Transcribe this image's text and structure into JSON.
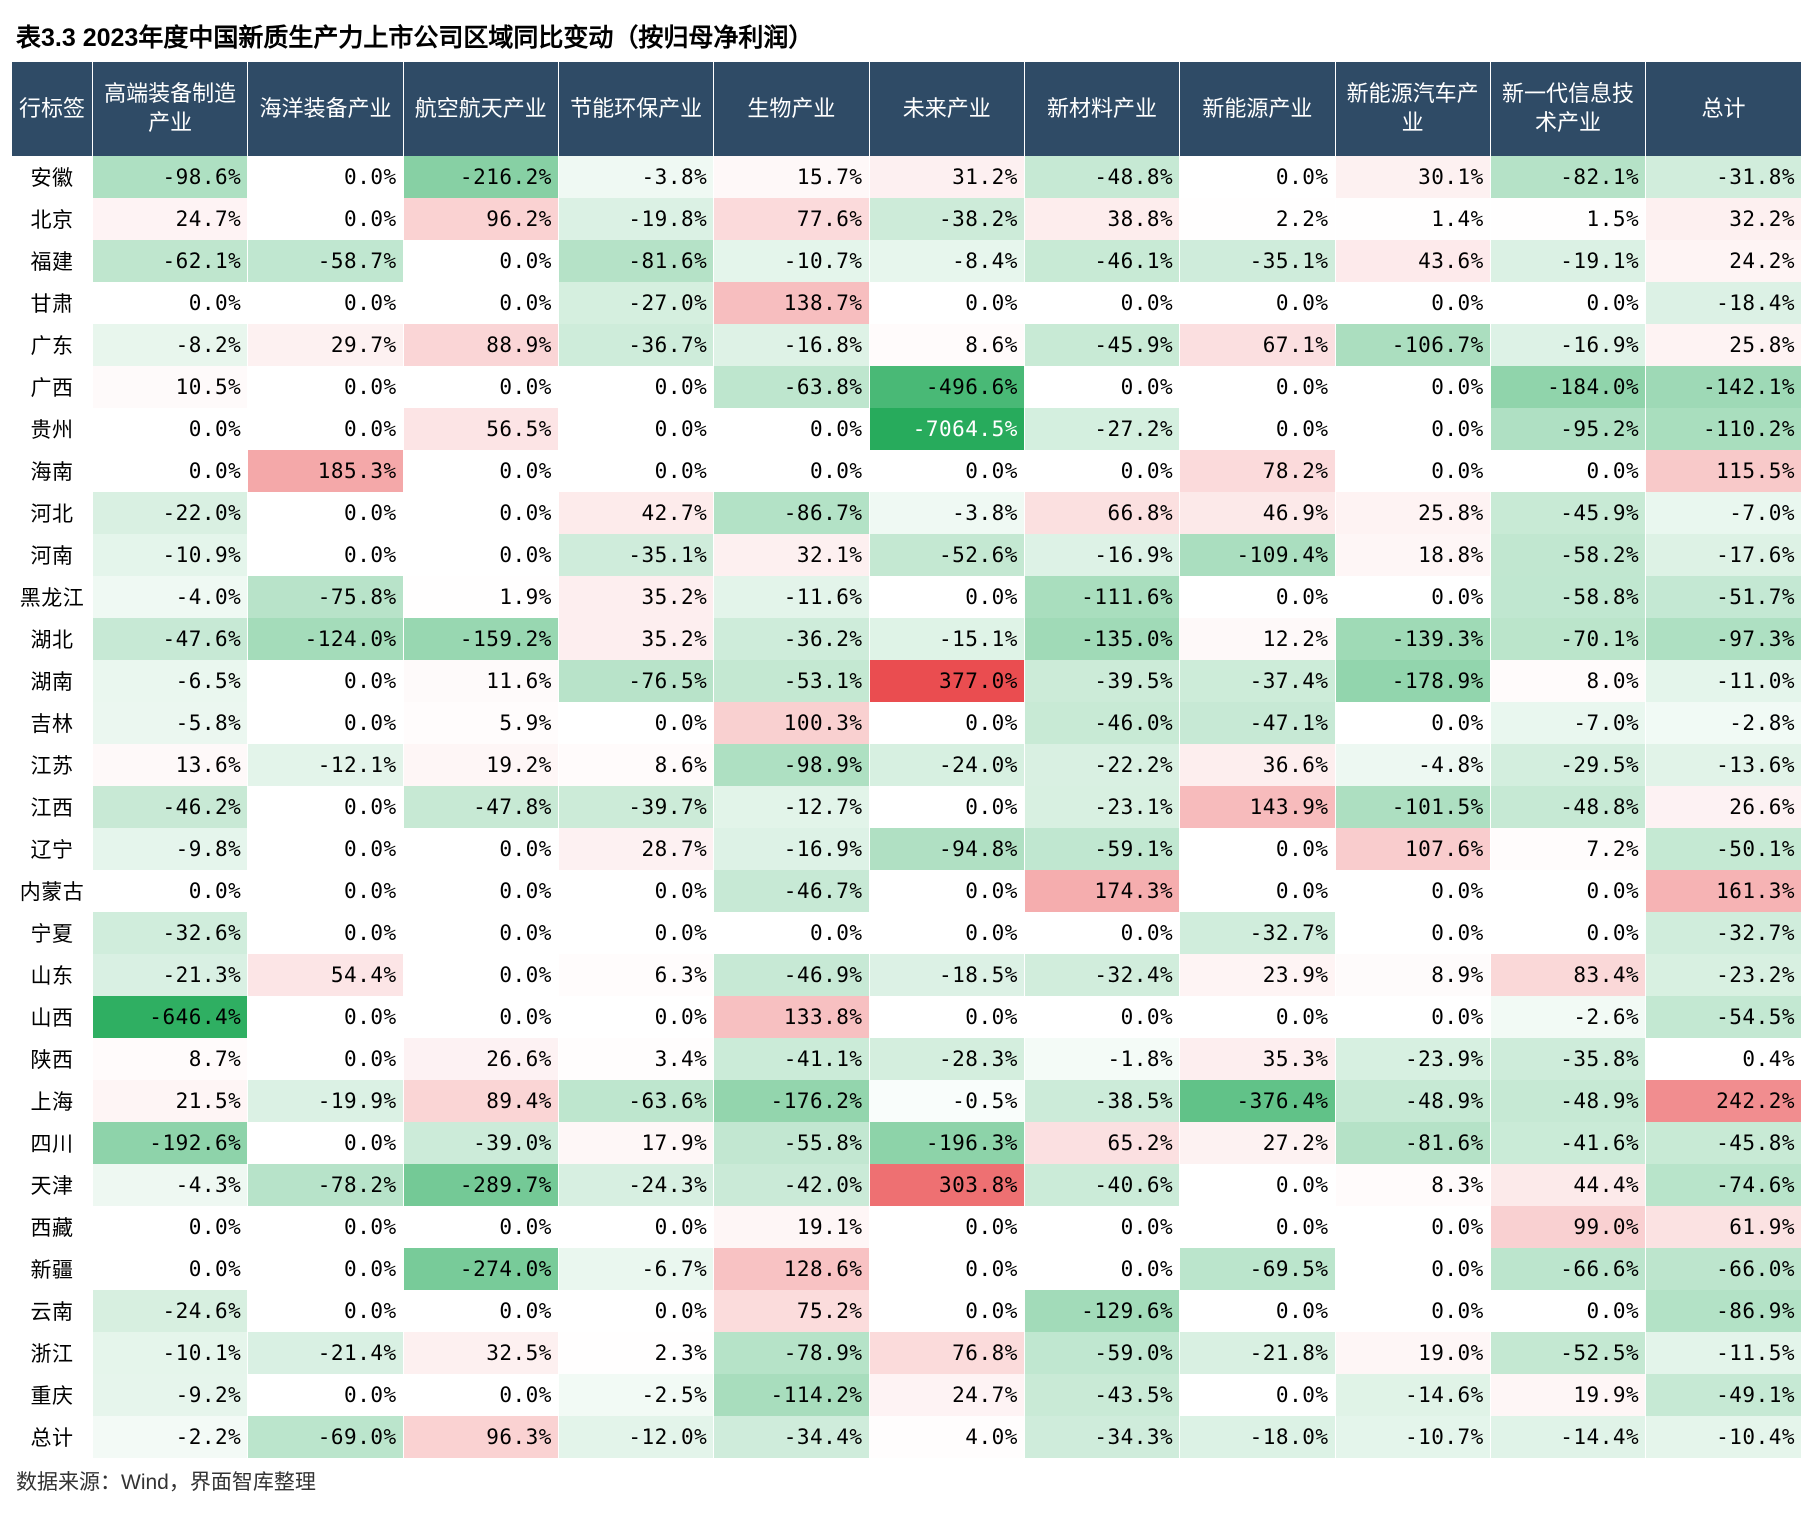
{
  "title": "表3.3 2023年度中国新质生产力上市公司区域同比变动（按归母净利润）",
  "footer": "数据来源：Wind，界面智库整理",
  "header_bg": "#2f4b66",
  "header_fg": "#ffffff",
  "heat_neg_color": "#0fa24a",
  "heat_pos_color": "#e7383b",
  "heat_ranges": {
    "neg_min": -700,
    "neg_max": 0,
    "pos_min": 0,
    "pos_max": 380
  },
  "columns": [
    "行标签",
    "高端装备制造产业",
    "海洋装备产业",
    "航空航天产业",
    "节能环保产业",
    "生物产业",
    "未来产业",
    "新材料产业",
    "新能源产业",
    "新能源汽车产业",
    "新一代信息技术产业",
    "总计"
  ],
  "rows": [
    {
      "label": "安徽",
      "v": [
        -98.6,
        0.0,
        -216.2,
        -3.8,
        15.7,
        31.2,
        -48.8,
        0.0,
        30.1,
        -82.1,
        -31.8
      ]
    },
    {
      "label": "北京",
      "v": [
        24.7,
        0.0,
        96.2,
        -19.8,
        77.6,
        -38.2,
        38.8,
        2.2,
        1.4,
        1.5,
        32.2
      ]
    },
    {
      "label": "福建",
      "v": [
        -62.1,
        -58.7,
        0.0,
        -81.6,
        -10.7,
        -8.4,
        -46.1,
        -35.1,
        43.6,
        -19.1,
        24.2
      ]
    },
    {
      "label": "甘肃",
      "v": [
        0.0,
        0.0,
        0.0,
        -27.0,
        138.7,
        0.0,
        0.0,
        0.0,
        0.0,
        0.0,
        -18.4
      ]
    },
    {
      "label": "广东",
      "v": [
        -8.2,
        29.7,
        88.9,
        -36.7,
        -16.8,
        8.6,
        -45.9,
        67.1,
        -106.7,
        -16.9,
        25.8
      ]
    },
    {
      "label": "广西",
      "v": [
        10.5,
        0.0,
        0.0,
        0.0,
        -63.8,
        -496.6,
        0.0,
        0.0,
        0.0,
        -184.0,
        -142.1
      ]
    },
    {
      "label": "贵州",
      "v": [
        0.0,
        0.0,
        56.5,
        0.0,
        0.0,
        -7064.5,
        -27.2,
        0.0,
        0.0,
        -95.2,
        -110.2
      ]
    },
    {
      "label": "海南",
      "v": [
        0.0,
        185.3,
        0.0,
        0.0,
        0.0,
        0.0,
        0.0,
        78.2,
        0.0,
        0.0,
        115.5
      ]
    },
    {
      "label": "河北",
      "v": [
        -22.0,
        0.0,
        0.0,
        42.7,
        -86.7,
        -3.8,
        66.8,
        46.9,
        25.8,
        -45.9,
        -7.0
      ]
    },
    {
      "label": "河南",
      "v": [
        -10.9,
        0.0,
        0.0,
        -35.1,
        32.1,
        -52.6,
        -16.9,
        -109.4,
        18.8,
        -58.2,
        -17.6
      ]
    },
    {
      "label": "黑龙江",
      "v": [
        -4.0,
        -75.8,
        1.9,
        35.2,
        -11.6,
        0.0,
        -111.6,
        0.0,
        0.0,
        -58.8,
        -51.7
      ]
    },
    {
      "label": "湖北",
      "v": [
        -47.6,
        -124.0,
        -159.2,
        35.2,
        -36.2,
        -15.1,
        -135.0,
        12.2,
        -139.3,
        -70.1,
        -97.3
      ]
    },
    {
      "label": "湖南",
      "v": [
        -6.5,
        0.0,
        11.6,
        -76.5,
        -53.1,
        377.0,
        -39.5,
        -37.4,
        -178.9,
        8.0,
        -11.0
      ]
    },
    {
      "label": "吉林",
      "v": [
        -5.8,
        0.0,
        5.9,
        0.0,
        100.3,
        0.0,
        -46.0,
        -47.1,
        0.0,
        -7.0,
        -2.8
      ]
    },
    {
      "label": "江苏",
      "v": [
        13.6,
        -12.1,
        19.2,
        8.6,
        -98.9,
        -24.0,
        -22.2,
        36.6,
        -4.8,
        -29.5,
        -13.6
      ]
    },
    {
      "label": "江西",
      "v": [
        -46.2,
        0.0,
        -47.8,
        -39.7,
        -12.7,
        0.0,
        -23.1,
        143.9,
        -101.5,
        -48.8,
        26.6
      ]
    },
    {
      "label": "辽宁",
      "v": [
        -9.8,
        0.0,
        0.0,
        28.7,
        -16.9,
        -94.8,
        -59.1,
        0.0,
        107.6,
        7.2,
        -50.1
      ]
    },
    {
      "label": "内蒙古",
      "v": [
        0.0,
        0.0,
        0.0,
        0.0,
        -46.7,
        0.0,
        174.3,
        0.0,
        0.0,
        0.0,
        161.3
      ]
    },
    {
      "label": "宁夏",
      "v": [
        -32.6,
        0.0,
        0.0,
        0.0,
        0.0,
        0.0,
        0.0,
        -32.7,
        0.0,
        0.0,
        -32.7
      ]
    },
    {
      "label": "山东",
      "v": [
        -21.3,
        54.4,
        0.0,
        6.3,
        -46.9,
        -18.5,
        -32.4,
        23.9,
        8.9,
        83.4,
        -23.2
      ]
    },
    {
      "label": "山西",
      "v": [
        -646.4,
        0.0,
        0.0,
        0.0,
        133.8,
        0.0,
        0.0,
        0.0,
        0.0,
        -2.6,
        -54.5
      ]
    },
    {
      "label": "陕西",
      "v": [
        8.7,
        0.0,
        26.6,
        3.4,
        -41.1,
        -28.3,
        -1.8,
        35.3,
        -23.9,
        -35.8,
        0.4
      ]
    },
    {
      "label": "上海",
      "v": [
        21.5,
        -19.9,
        89.4,
        -63.6,
        -176.2,
        -0.5,
        -38.5,
        -376.4,
        -48.9,
        -48.9,
        242.2
      ]
    },
    {
      "label": "四川",
      "v": [
        -192.6,
        0.0,
        -39.0,
        17.9,
        -55.8,
        -196.3,
        65.2,
        27.2,
        -81.6,
        -41.6,
        -45.8
      ]
    },
    {
      "label": "天津",
      "v": [
        -4.3,
        -78.2,
        -289.7,
        -24.3,
        -42.0,
        303.8,
        -40.6,
        0.0,
        8.3,
        44.4,
        -74.6
      ]
    },
    {
      "label": "西藏",
      "v": [
        0.0,
        0.0,
        0.0,
        0.0,
        19.1,
        0.0,
        0.0,
        0.0,
        0.0,
        99.0,
        61.9
      ]
    },
    {
      "label": "新疆",
      "v": [
        0.0,
        0.0,
        -274.0,
        -6.7,
        128.6,
        0.0,
        0.0,
        -69.5,
        0.0,
        -66.6,
        -66.0
      ]
    },
    {
      "label": "云南",
      "v": [
        -24.6,
        0.0,
        0.0,
        0.0,
        75.2,
        0.0,
        -129.6,
        0.0,
        0.0,
        0.0,
        -86.9
      ]
    },
    {
      "label": "浙江",
      "v": [
        -10.1,
        -21.4,
        32.5,
        2.3,
        -78.9,
        76.8,
        -59.0,
        -21.8,
        19.0,
        -52.5,
        -11.5
      ]
    },
    {
      "label": "重庆",
      "v": [
        -9.2,
        0.0,
        0.0,
        -2.5,
        -114.2,
        24.7,
        -43.5,
        0.0,
        -14.6,
        19.9,
        -49.1
      ]
    },
    {
      "label": "总计",
      "v": [
        -2.2,
        -69.0,
        96.3,
        -12.0,
        -34.4,
        4.0,
        -34.3,
        -18.0,
        -10.7,
        -14.4,
        -10.4
      ]
    }
  ]
}
